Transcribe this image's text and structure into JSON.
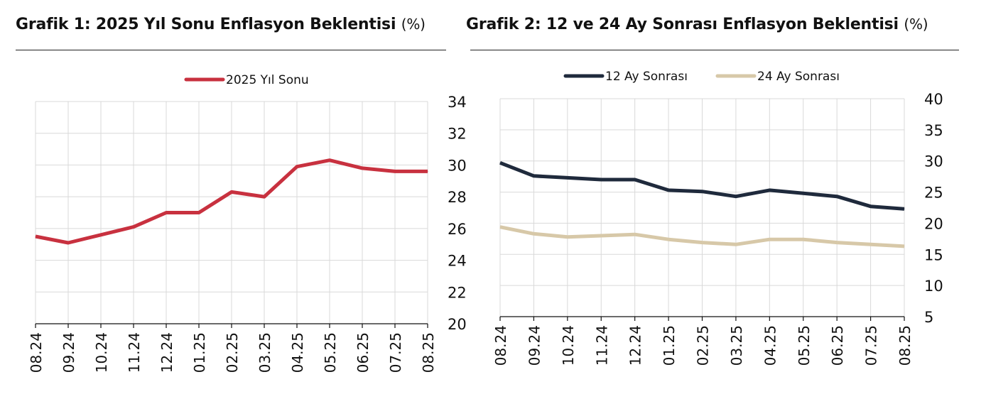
{
  "chart_data": [
    {
      "type": "line",
      "title": "Grafik 1: 2025 Yıl Sonu Enflasyon Beklentisi",
      "title_unit": "(%)",
      "categories": [
        "08.24",
        "09.24",
        "10.24",
        "11.24",
        "12.24",
        "01.25",
        "02.25",
        "03.25",
        "04.25",
        "05.25",
        "06.25",
        "07.25",
        "08.25"
      ],
      "series": [
        {
          "name": "2025 Yıl Sonu",
          "color": "#c8313f",
          "values": [
            25.5,
            25.1,
            25.6,
            26.1,
            27.0,
            27.0,
            28.3,
            28.0,
            29.9,
            30.3,
            29.8,
            29.6,
            29.6
          ]
        }
      ],
      "ylim": [
        20,
        34
      ],
      "yticks": [
        "20",
        "22",
        "24",
        "26",
        "28",
        "30",
        "32",
        "34"
      ],
      "y_axis_side": "right",
      "grid": true,
      "legend": "top-center"
    },
    {
      "type": "line",
      "title": "Grafik 2: 12 ve 24 Ay Sonrası Enflasyon Beklentisi",
      "title_unit": "(%)",
      "categories": [
        "08.24",
        "09.24",
        "10.24",
        "11.24",
        "12.24",
        "01.25",
        "02.25",
        "03.25",
        "04.25",
        "05.25",
        "06.25",
        "07.25",
        "08.25"
      ],
      "series": [
        {
          "name": "12 Ay Sonrası",
          "color": "#1f2a3c",
          "values": [
            29.7,
            27.6,
            27.3,
            27.0,
            27.0,
            25.3,
            25.1,
            24.3,
            25.3,
            24.8,
            24.3,
            22.7,
            22.3
          ]
        },
        {
          "name": "24 Ay Sonrası",
          "color": "#d7c8a8",
          "values": [
            19.4,
            18.3,
            17.8,
            18.0,
            18.2,
            17.4,
            16.9,
            16.6,
            17.4,
            17.4,
            16.9,
            16.6,
            16.3
          ]
        }
      ],
      "ylim": [
        5,
        40
      ],
      "yticks": [
        "5",
        "10",
        "15",
        "20",
        "25",
        "30",
        "35",
        "40"
      ],
      "y_axis_side": "right",
      "grid": true,
      "legend": "top-center"
    }
  ]
}
